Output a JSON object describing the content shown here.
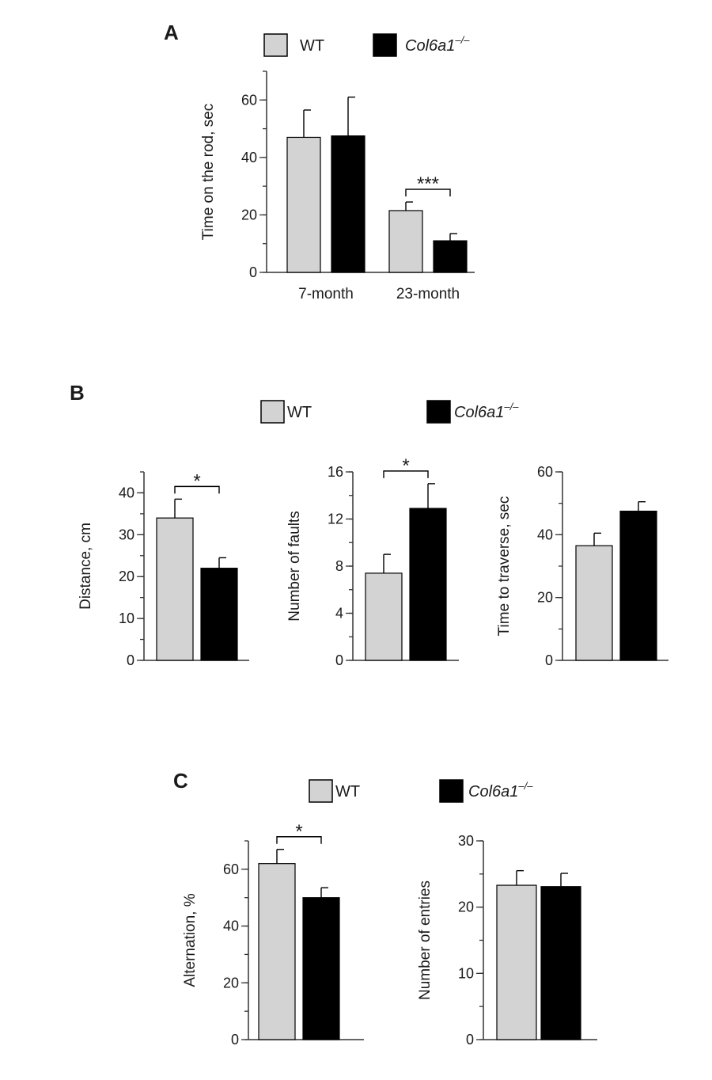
{
  "colors": {
    "wt": "#d3d3d3",
    "ko": "#000000",
    "axis": "#333333"
  },
  "chart_data": [
    {
      "id": "A",
      "type": "bar",
      "panel_label": "A",
      "legend": [
        {
          "label": "WT",
          "color": "#d3d3d3",
          "italic": false,
          "sup": ""
        },
        {
          "label": "Col6a1",
          "color": "#000000",
          "italic": true,
          "sup": "–/–"
        }
      ],
      "categories": [
        "7-month",
        "23-month"
      ],
      "series": [
        {
          "name": "WT",
          "values": [
            47,
            21.5
          ],
          "errors": [
            9.5,
            3
          ]
        },
        {
          "name": "Col6a1–/–",
          "values": [
            47.5,
            11
          ],
          "errors": [
            13.5,
            2.5
          ]
        }
      ],
      "ylabel": "Time on the rod, sec",
      "ylim": [
        0,
        70
      ],
      "yticks": [
        0,
        20,
        40,
        60
      ],
      "minor_step": 10,
      "significance": [
        {
          "category": 1,
          "label": "***"
        }
      ]
    },
    {
      "id": "B1",
      "type": "bar",
      "panel_label": "B",
      "legend": [
        {
          "label": "WT",
          "color": "#d3d3d3",
          "italic": false,
          "sup": ""
        },
        {
          "label": "Col6a1",
          "color": "#000000",
          "italic": true,
          "sup": "–/–"
        }
      ],
      "categories": [
        ""
      ],
      "series": [
        {
          "name": "WT",
          "values": [
            34
          ],
          "errors": [
            4.5
          ]
        },
        {
          "name": "Col6a1–/–",
          "values": [
            22
          ],
          "errors": [
            2.5
          ]
        }
      ],
      "ylabel": "Distance, cm",
      "ylim": [
        0,
        45
      ],
      "yticks": [
        0,
        10,
        20,
        30,
        40
      ],
      "minor_step": 5,
      "significance": [
        {
          "category": 0,
          "label": "*"
        }
      ]
    },
    {
      "id": "B2",
      "type": "bar",
      "panel_label": "",
      "legend": [],
      "categories": [
        ""
      ],
      "series": [
        {
          "name": "WT",
          "values": [
            7.4
          ],
          "errors": [
            1.6
          ]
        },
        {
          "name": "Col6a1–/–",
          "values": [
            12.9
          ],
          "errors": [
            2.1
          ]
        }
      ],
      "ylabel": "Number of faults",
      "ylim": [
        0,
        16
      ],
      "yticks": [
        0,
        4,
        8,
        12,
        16
      ],
      "minor_step": 2,
      "significance": [
        {
          "category": 0,
          "label": "*"
        }
      ]
    },
    {
      "id": "B3",
      "type": "bar",
      "panel_label": "",
      "legend": [],
      "categories": [
        ""
      ],
      "series": [
        {
          "name": "WT",
          "values": [
            36.5
          ],
          "errors": [
            4
          ]
        },
        {
          "name": "Col6a1–/–",
          "values": [
            47.5
          ],
          "errors": [
            3
          ]
        }
      ],
      "ylabel": "Time to traverse, sec",
      "ylim": [
        0,
        60
      ],
      "yticks": [
        0,
        20,
        40,
        60
      ],
      "minor_step": 10,
      "significance": []
    },
    {
      "id": "C1",
      "type": "bar",
      "panel_label": "C",
      "legend": [
        {
          "label": "WT",
          "color": "#d3d3d3",
          "italic": false,
          "sup": ""
        },
        {
          "label": "Col6a1",
          "color": "#000000",
          "italic": true,
          "sup": "–/–"
        }
      ],
      "categories": [
        ""
      ],
      "series": [
        {
          "name": "WT",
          "values": [
            62
          ],
          "errors": [
            5
          ]
        },
        {
          "name": "Col6a1–/–",
          "values": [
            50
          ],
          "errors": [
            3.5
          ]
        }
      ],
      "ylabel": "Alternation, %",
      "ylim": [
        0,
        70
      ],
      "yticks": [
        0,
        20,
        40,
        60
      ],
      "minor_step": 10,
      "significance": [
        {
          "category": 0,
          "label": "*"
        }
      ]
    },
    {
      "id": "C2",
      "type": "bar",
      "panel_label": "",
      "legend": [],
      "categories": [
        ""
      ],
      "series": [
        {
          "name": "WT",
          "values": [
            23.3
          ],
          "errors": [
            2.2
          ]
        },
        {
          "name": "Col6a1–/–",
          "values": [
            23.1
          ],
          "errors": [
            2
          ]
        }
      ],
      "ylabel": "Number of entries",
      "ylim": [
        0,
        30
      ],
      "yticks": [
        0,
        10,
        20,
        30
      ],
      "minor_step": 5,
      "significance": []
    }
  ]
}
